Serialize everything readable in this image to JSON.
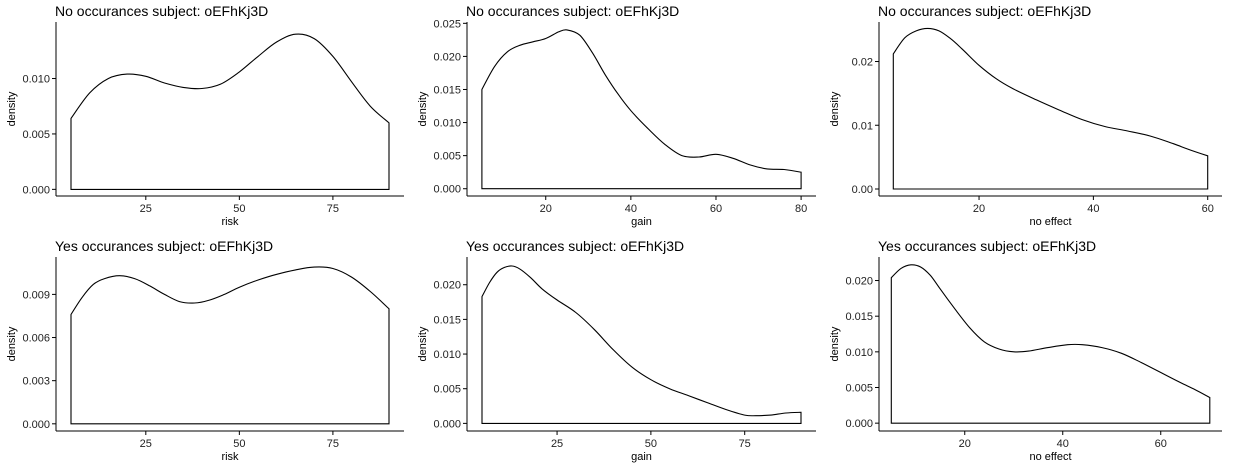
{
  "chart_data": [
    {
      "type": "area",
      "title": "No occurances subject:  oEFhKj3D",
      "xlabel": "risk",
      "ylabel": "density",
      "xlim": [
        1,
        94
      ],
      "ylim": [
        -0.0006,
        0.0151
      ],
      "xticks": [
        25,
        50,
        75
      ],
      "xtick_labels": [
        "25",
        "50",
        "75"
      ],
      "yticks": [
        0.0,
        0.005,
        0.01
      ],
      "ytick_labels": [
        "0.000",
        "0.005",
        "0.010"
      ],
      "grid": false,
      "x": [
        5,
        10,
        15,
        20,
        25,
        30,
        35,
        40,
        45,
        50,
        55,
        60,
        65,
        70,
        75,
        80,
        85,
        90
      ],
      "y": [
        0.0064,
        0.0087,
        0.01,
        0.0104,
        0.0102,
        0.0096,
        0.0092,
        0.0091,
        0.0095,
        0.0106,
        0.012,
        0.0133,
        0.014,
        0.0136,
        0.012,
        0.0097,
        0.0075,
        0.006
      ]
    },
    {
      "type": "area",
      "title": "No occurances subject:  oEFhKj3D",
      "xlabel": "gain",
      "ylabel": "density",
      "xlim": [
        1.5,
        83.5
      ],
      "ylim": [
        -0.0011,
        0.0252
      ],
      "xticks": [
        20,
        40,
        60,
        80
      ],
      "xtick_labels": [
        "20",
        "40",
        "60",
        "80"
      ],
      "yticks": [
        0.0,
        0.005,
        0.01,
        0.015,
        0.02,
        0.025
      ],
      "ytick_labels": [
        "0.000",
        "0.005",
        "0.010",
        "0.015",
        "0.020",
        "0.025"
      ],
      "grid": false,
      "x": [
        5,
        8,
        11,
        14,
        17,
        20,
        23,
        25,
        28,
        31,
        34,
        37,
        40,
        44,
        48,
        52,
        56,
        60,
        64,
        68,
        72,
        76,
        80
      ],
      "y": [
        0.015,
        0.0185,
        0.0207,
        0.0217,
        0.0222,
        0.0227,
        0.0237,
        0.024,
        0.0232,
        0.0205,
        0.0172,
        0.0143,
        0.0118,
        0.0091,
        0.0067,
        0.005,
        0.0048,
        0.0052,
        0.0046,
        0.0036,
        0.003,
        0.0029,
        0.0025
      ]
    },
    {
      "type": "area",
      "title": "No occurances subject:  oEFhKj3D",
      "xlabel": "no effect",
      "ylabel": "density",
      "xlim": [
        2.5,
        62.5
      ],
      "ylim": [
        -0.0011,
        0.0262
      ],
      "xticks": [
        20,
        40,
        60
      ],
      "xtick_labels": [
        "20",
        "40",
        "60"
      ],
      "yticks": [
        0.0,
        0.01,
        0.02
      ],
      "ytick_labels": [
        "0.00",
        "0.01",
        "0.02"
      ],
      "grid": false,
      "x": [
        5,
        7,
        9,
        11,
        13,
        15,
        17,
        20,
        23,
        26,
        30,
        34,
        38,
        42,
        46,
        50,
        54,
        57,
        60
      ],
      "y": [
        0.0212,
        0.0237,
        0.0248,
        0.0252,
        0.0248,
        0.0236,
        0.022,
        0.0194,
        0.0173,
        0.0157,
        0.014,
        0.0124,
        0.0109,
        0.0098,
        0.0091,
        0.0083,
        0.0071,
        0.0061,
        0.0052
      ]
    },
    {
      "type": "area",
      "title": "Yes occurances subject:  oEFhKj3D",
      "xlabel": "risk",
      "ylabel": "density",
      "xlim": [
        1,
        94
      ],
      "ylim": [
        -0.0005,
        0.0116
      ],
      "xticks": [
        25,
        50,
        75
      ],
      "xtick_labels": [
        "25",
        "50",
        "75"
      ],
      "yticks": [
        0.0,
        0.003,
        0.006,
        0.009
      ],
      "ytick_labels": [
        "0.000",
        "0.003",
        "0.006",
        "0.009"
      ],
      "grid": false,
      "x": [
        5,
        8,
        11,
        14,
        18,
        22,
        26,
        30,
        34,
        38,
        42,
        46,
        50,
        55,
        60,
        65,
        70,
        75,
        80,
        85,
        90
      ],
      "y": [
        0.0076,
        0.0088,
        0.0097,
        0.0101,
        0.0103,
        0.0101,
        0.0096,
        0.009,
        0.0085,
        0.0084,
        0.0086,
        0.009,
        0.0095,
        0.01,
        0.0104,
        0.0107,
        0.0109,
        0.0108,
        0.0102,
        0.0092,
        0.008
      ]
    },
    {
      "type": "area",
      "title": "Yes occurances subject:  oEFhKj3D",
      "xlabel": "gain",
      "ylabel": "density",
      "xlim": [
        1,
        94
      ],
      "ylim": [
        -0.0011,
        0.024
      ],
      "xticks": [
        25,
        50,
        75
      ],
      "xtick_labels": [
        "25",
        "50",
        "75"
      ],
      "yticks": [
        0.0,
        0.005,
        0.01,
        0.015,
        0.02
      ],
      "ytick_labels": [
        "0.000",
        "0.005",
        "0.010",
        "0.015",
        "0.020"
      ],
      "grid": false,
      "x": [
        5,
        7,
        9,
        11,
        13,
        15,
        18,
        21,
        25,
        30,
        35,
        40,
        45,
        50,
        55,
        60,
        65,
        70,
        75,
        78,
        82,
        86,
        90
      ],
      "y": [
        0.0183,
        0.0203,
        0.0218,
        0.0225,
        0.0227,
        0.0223,
        0.021,
        0.0194,
        0.0178,
        0.016,
        0.0135,
        0.0106,
        0.0081,
        0.0063,
        0.005,
        0.004,
        0.003,
        0.002,
        0.0012,
        0.0011,
        0.0012,
        0.0015,
        0.0016
      ]
    },
    {
      "type": "area",
      "title": "Yes occurances subject:  oEFhKj3D",
      "xlabel": "no effect",
      "ylabel": "density",
      "xlim": [
        2.5,
        72.5
      ],
      "ylim": [
        -0.0011,
        0.0233
      ],
      "xticks": [
        20,
        40,
        60
      ],
      "xtick_labels": [
        "20",
        "40",
        "60"
      ],
      "yticks": [
        0.0,
        0.005,
        0.01,
        0.015,
        0.02
      ],
      "ytick_labels": [
        "0.000",
        "0.005",
        "0.010",
        "0.015",
        "0.020"
      ],
      "grid": false,
      "x": [
        5,
        7,
        9,
        11,
        13,
        15,
        18,
        21,
        24,
        27,
        30,
        33,
        37,
        41,
        44,
        48,
        52,
        56,
        60,
        64,
        67,
        70
      ],
      "y": [
        0.0204,
        0.0217,
        0.0222,
        0.0219,
        0.0207,
        0.0188,
        0.016,
        0.0134,
        0.0114,
        0.0104,
        0.01,
        0.0101,
        0.0106,
        0.011,
        0.011,
        0.0106,
        0.0098,
        0.0085,
        0.0071,
        0.0057,
        0.0047,
        0.0036
      ]
    }
  ]
}
